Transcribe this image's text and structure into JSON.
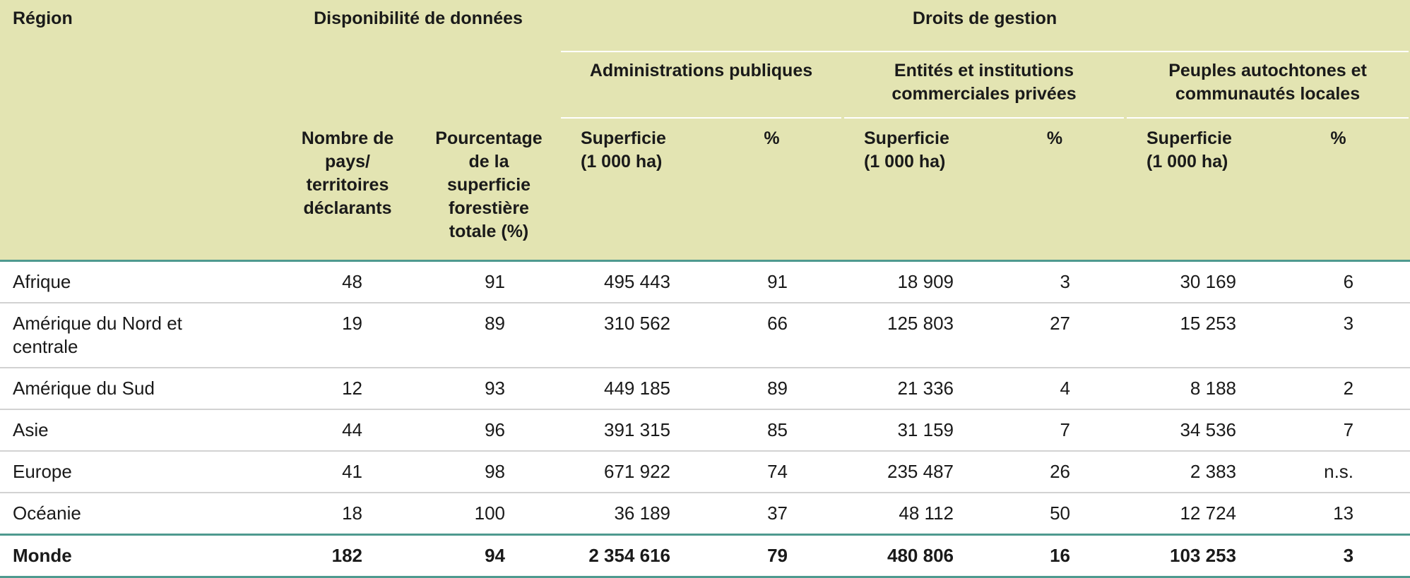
{
  "header": {
    "region": "Région",
    "data_availability": "Disponibilité de données",
    "management_rights": "Droits de gestion",
    "public_admin": "Administrations publiques",
    "private_entities": "Entités et institutions commerciales privées",
    "indigenous": "Peuples autochtones et communautés locales",
    "count_label": "Nombre de pays/ territoires déclarants",
    "pct_label": "Pourcentage de la superficie forestière totale (%)",
    "area_label": "Superficie (1 000 ha)",
    "percent": "%"
  },
  "rows": [
    {
      "region": "Afrique",
      "count": "48",
      "pct": "91",
      "s1": "495 443",
      "p1": "91",
      "s2": "18 909",
      "p2": "3",
      "s3": "30 169",
      "p3": "6"
    },
    {
      "region": "Amérique du Nord et centrale",
      "count": "19",
      "pct": "89",
      "s1": "310 562",
      "p1": "66",
      "s2": "125 803",
      "p2": "27",
      "s3": "15 253",
      "p3": "3"
    },
    {
      "region": "Amérique du Sud",
      "count": "12",
      "pct": "93",
      "s1": "449 185",
      "p1": "89",
      "s2": "21 336",
      "p2": "4",
      "s3": "8 188",
      "p3": "2"
    },
    {
      "region": "Asie",
      "count": "44",
      "pct": "96",
      "s1": "391 315",
      "p1": "85",
      "s2": "31 159",
      "p2": "7",
      "s3": "34 536",
      "p3": "7"
    },
    {
      "region": "Europe",
      "count": "41",
      "pct": "98",
      "s1": "671 922",
      "p1": "74",
      "s2": "235 487",
      "p2": "26",
      "s3": "2 383",
      "p3": "n.s."
    },
    {
      "region": "Océanie",
      "count": "18",
      "pct": "100",
      "s1": "36 189",
      "p1": "37",
      "s2": "48 112",
      "p2": "50",
      "s3": "12 724",
      "p3": "13"
    }
  ],
  "total": {
    "region": "Monde",
    "count": "182",
    "pct": "94",
    "s1": "2 354 616",
    "p1": "79",
    "s2": "480 806",
    "p2": "16",
    "s3": "103 253",
    "p3": "3"
  },
  "colors": {
    "header_bg": "#e3e4b2",
    "accent_rule": "#4e9a8f",
    "row_rule": "#d2d2d2"
  }
}
